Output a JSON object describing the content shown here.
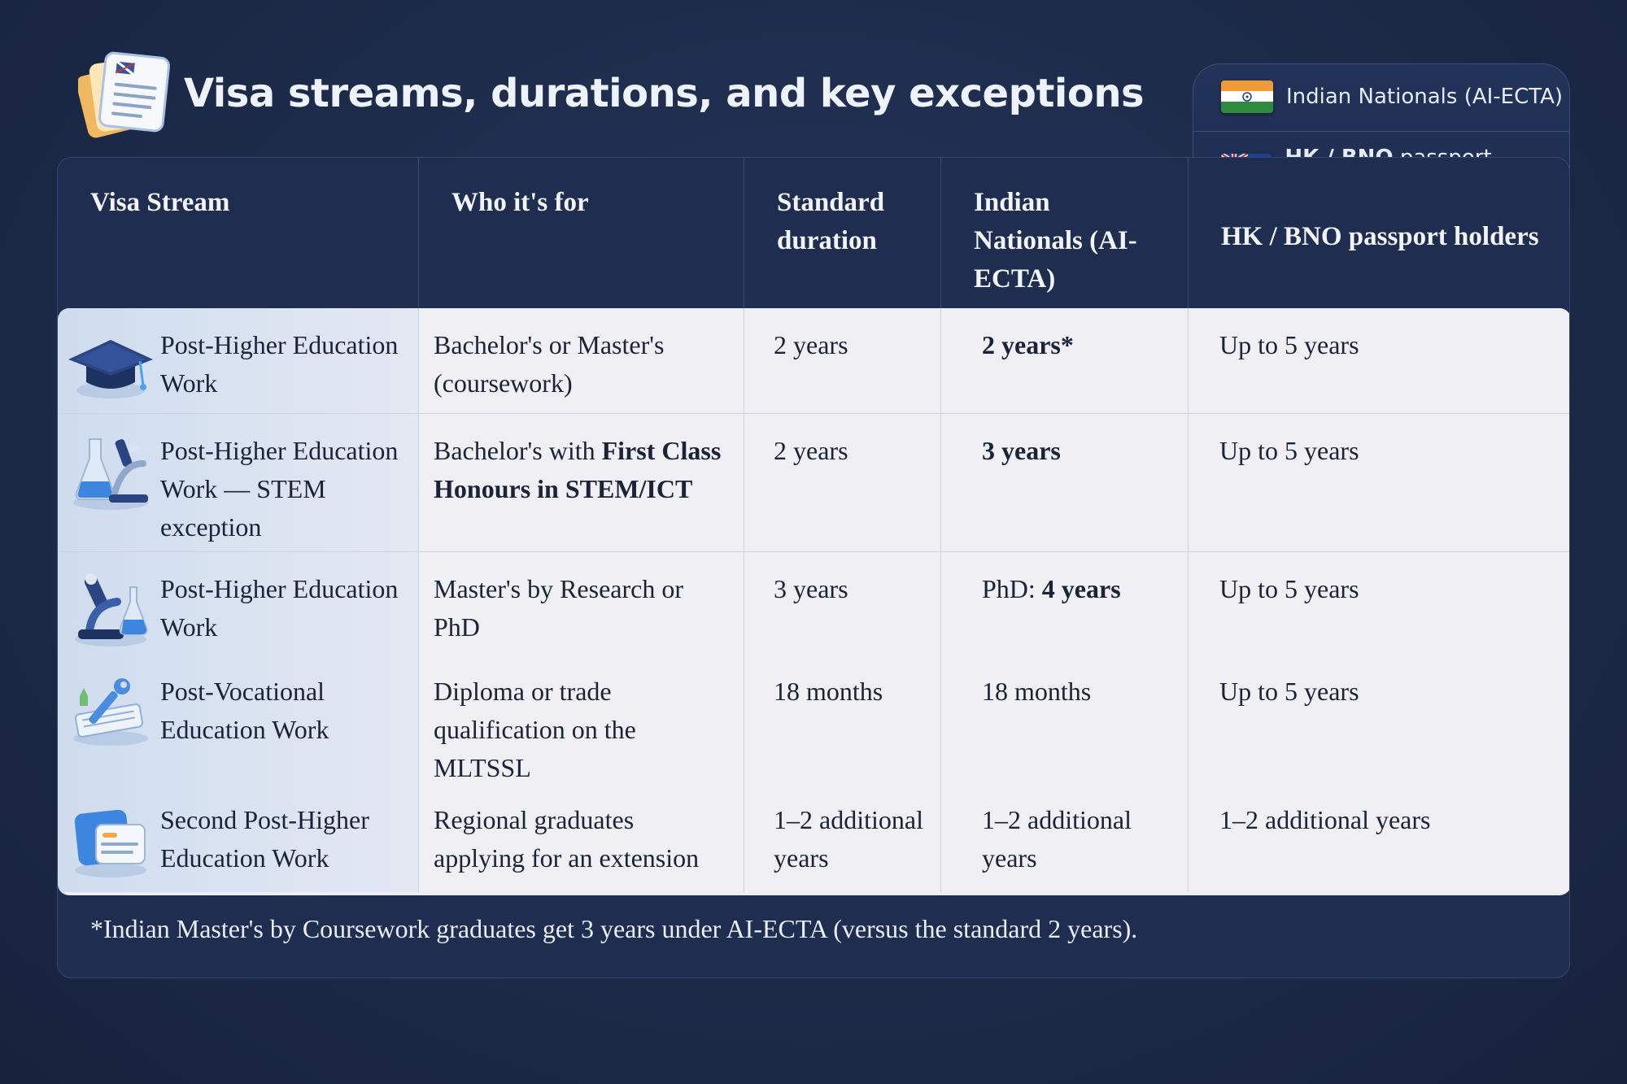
{
  "title": "Visa streams, durations, and key exceptions",
  "legend": {
    "items": [
      {
        "label": "Indian Nationals (AI-ECTA)",
        "flag": "india-flag-icon"
      },
      {
        "label_bold": "HK / BNO",
        "label_rest": "passport holders",
        "flag": "australia-flag-icon"
      }
    ]
  },
  "table": {
    "headers": [
      "Visa Stream",
      "Who it's for",
      "Standard duration",
      "Indian Nationals (AI-ECTA)",
      "HK / BNO passport holders"
    ],
    "rows": [
      {
        "icon": "graduation-cap-icon",
        "stream": "Post-Higher Education Work",
        "who": {
          "pre": "Bachelor's or Master's (coursework)",
          "bold": "",
          "post": ""
        },
        "standard": "2 years",
        "indian": {
          "pre": "",
          "bold": "2 years*",
          "post": ""
        },
        "hk": "Up to 5 years"
      },
      {
        "icon": "flask-microscope-icon",
        "stream": "Post-Higher Education Work — STEM exception",
        "who": {
          "pre": "Bachelor's with ",
          "bold": "First Class Honours in STEM/ICT",
          "post": ""
        },
        "standard": "2 years",
        "indian": {
          "pre": "",
          "bold": "3 years",
          "post": ""
        },
        "hk": "Up to 5 years"
      },
      {
        "icon": "microscope-icon",
        "stream": "Post-Higher Education Work",
        "who": {
          "pre": "Master's by Research or PhD",
          "bold": "",
          "post": ""
        },
        "standard": "3 years",
        "indian": {
          "pre": "PhD: ",
          "bold": "4 years",
          "post": ""
        },
        "hk": "Up to 5 years"
      },
      {
        "icon": "wrench-blueprint-icon",
        "stream": "Post-Vocational Education Work",
        "who": {
          "pre": "Diploma or trade qualification on the MLTSSL",
          "bold": "",
          "post": ""
        },
        "standard": "18 months",
        "indian": {
          "pre": "18 months",
          "bold": "",
          "post": ""
        },
        "hk": "Up to 5 years"
      },
      {
        "icon": "document-cards-icon",
        "stream": "Second Post-Higher Education Work",
        "who": {
          "pre": "Regional graduates applying for an extension",
          "bold": "",
          "post": ""
        },
        "standard": "1–2 additional years",
        "indian": {
          "pre": "1–2 additional years",
          "bold": "",
          "post": ""
        },
        "hk": "1–2 additional years"
      }
    ]
  },
  "footnote": "*Indian Master's by Coursework graduates get 3 years under AI-ECTA (versus the standard 2 years)."
}
